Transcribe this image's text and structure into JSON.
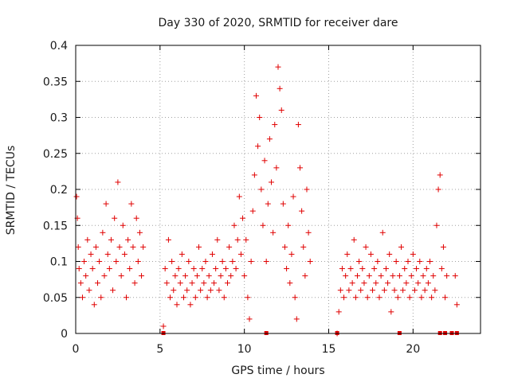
{
  "chart_data": {
    "type": "scatter",
    "title": "Day 330 of 2020, SRMTID for receiver dare",
    "xlabel": "GPS time / hours",
    "ylabel": "SRMTID / TECUs",
    "xlim": [
      0,
      24
    ],
    "ylim": [
      0,
      0.4
    ],
    "x_ticks": [
      0,
      5,
      10,
      15,
      20
    ],
    "x_tick_labels": [
      "0",
      "5",
      "10",
      "15",
      "20"
    ],
    "y_ticks": [
      0,
      0.05,
      0.1,
      0.15,
      0.2,
      0.25,
      0.3,
      0.35,
      0.4
    ],
    "y_tick_labels": [
      "0",
      "0.05",
      "0.1",
      "0.15",
      "0.2",
      "0.25",
      "0.3",
      "0.35",
      "0.4"
    ],
    "grid": true,
    "marker": "+",
    "color": "#e00000",
    "series": [
      {
        "name": "SRMTID",
        "points": [
          [
            0.05,
            0.19
          ],
          [
            0.1,
            0.16
          ],
          [
            0.15,
            0.12
          ],
          [
            0.2,
            0.09
          ],
          [
            0.3,
            0.07
          ],
          [
            0.4,
            0.05
          ],
          [
            0.5,
            0.1
          ],
          [
            0.6,
            0.08
          ],
          [
            0.7,
            0.13
          ],
          [
            0.8,
            0.06
          ],
          [
            0.9,
            0.11
          ],
          [
            1.0,
            0.09
          ],
          [
            1.1,
            0.04
          ],
          [
            1.2,
            0.12
          ],
          [
            1.3,
            0.07
          ],
          [
            1.4,
            0.1
          ],
          [
            1.5,
            0.05
          ],
          [
            1.6,
            0.14
          ],
          [
            1.7,
            0.08
          ],
          [
            1.8,
            0.18
          ],
          [
            1.9,
            0.11
          ],
          [
            2.0,
            0.09
          ],
          [
            2.1,
            0.13
          ],
          [
            2.2,
            0.06
          ],
          [
            2.3,
            0.16
          ],
          [
            2.4,
            0.1
          ],
          [
            2.5,
            0.21
          ],
          [
            2.6,
            0.12
          ],
          [
            2.7,
            0.08
          ],
          [
            2.8,
            0.15
          ],
          [
            2.9,
            0.11
          ],
          [
            3.0,
            0.05
          ],
          [
            3.1,
            0.13
          ],
          [
            3.2,
            0.09
          ],
          [
            3.3,
            0.18
          ],
          [
            3.4,
            0.12
          ],
          [
            3.5,
            0.07
          ],
          [
            3.6,
            0.16
          ],
          [
            3.7,
            0.1
          ],
          [
            3.8,
            0.14
          ],
          [
            3.9,
            0.08
          ],
          [
            4.0,
            0.12
          ],
          [
            5.2,
            0.01
          ],
          [
            5.3,
            0.09
          ],
          [
            5.4,
            0.07
          ],
          [
            5.5,
            0.13
          ],
          [
            5.6,
            0.05
          ],
          [
            5.7,
            0.1
          ],
          [
            5.8,
            0.06
          ],
          [
            5.9,
            0.08
          ],
          [
            6.0,
            0.04
          ],
          [
            6.1,
            0.09
          ],
          [
            6.2,
            0.07
          ],
          [
            6.3,
            0.11
          ],
          [
            6.4,
            0.05
          ],
          [
            6.5,
            0.08
          ],
          [
            6.6,
            0.06
          ],
          [
            6.7,
            0.1
          ],
          [
            6.8,
            0.04
          ],
          [
            6.9,
            0.07
          ],
          [
            7.0,
            0.09
          ],
          [
            7.1,
            0.05
          ],
          [
            7.2,
            0.08
          ],
          [
            7.3,
            0.12
          ],
          [
            7.4,
            0.06
          ],
          [
            7.5,
            0.09
          ],
          [
            7.6,
            0.07
          ],
          [
            7.7,
            0.1
          ],
          [
            7.8,
            0.05
          ],
          [
            7.9,
            0.08
          ],
          [
            8.0,
            0.06
          ],
          [
            8.1,
            0.11
          ],
          [
            8.2,
            0.07
          ],
          [
            8.3,
            0.09
          ],
          [
            8.4,
            0.13
          ],
          [
            8.5,
            0.06
          ],
          [
            8.6,
            0.08
          ],
          [
            8.7,
            0.1
          ],
          [
            8.8,
            0.05
          ],
          [
            8.9,
            0.09
          ],
          [
            9.0,
            0.07
          ],
          [
            9.1,
            0.12
          ],
          [
            9.2,
            0.08
          ],
          [
            9.3,
            0.1
          ],
          [
            9.4,
            0.15
          ],
          [
            9.5,
            0.09
          ],
          [
            9.6,
            0.13
          ],
          [
            9.7,
            0.19
          ],
          [
            9.8,
            0.11
          ],
          [
            9.9,
            0.16
          ],
          [
            10.0,
            0.08
          ],
          [
            10.1,
            0.13
          ],
          [
            10.2,
            0.05
          ],
          [
            10.3,
            0.02
          ],
          [
            10.4,
            0.1
          ],
          [
            10.5,
            0.17
          ],
          [
            10.6,
            0.22
          ],
          [
            10.7,
            0.33
          ],
          [
            10.8,
            0.26
          ],
          [
            10.9,
            0.3
          ],
          [
            11.0,
            0.2
          ],
          [
            11.1,
            0.15
          ],
          [
            11.2,
            0.24
          ],
          [
            11.3,
            0.1
          ],
          [
            11.4,
            0.18
          ],
          [
            11.5,
            0.27
          ],
          [
            11.6,
            0.21
          ],
          [
            11.7,
            0.14
          ],
          [
            11.8,
            0.29
          ],
          [
            11.9,
            0.23
          ],
          [
            12.0,
            0.37
          ],
          [
            12.1,
            0.34
          ],
          [
            12.2,
            0.31
          ],
          [
            12.3,
            0.18
          ],
          [
            12.4,
            0.12
          ],
          [
            12.5,
            0.09
          ],
          [
            12.6,
            0.15
          ],
          [
            12.7,
            0.07
          ],
          [
            12.8,
            0.11
          ],
          [
            12.9,
            0.19
          ],
          [
            13.0,
            0.05
          ],
          [
            13.1,
            0.02
          ],
          [
            13.2,
            0.29
          ],
          [
            13.3,
            0.23
          ],
          [
            13.4,
            0.17
          ],
          [
            13.5,
            0.12
          ],
          [
            13.6,
            0.08
          ],
          [
            13.7,
            0.2
          ],
          [
            13.8,
            0.14
          ],
          [
            13.9,
            0.1
          ],
          [
            15.5,
            0.0
          ],
          [
            15.6,
            0.03
          ],
          [
            15.7,
            0.06
          ],
          [
            15.8,
            0.09
          ],
          [
            15.9,
            0.05
          ],
          [
            16.0,
            0.08
          ],
          [
            16.1,
            0.11
          ],
          [
            16.2,
            0.06
          ],
          [
            16.3,
            0.09
          ],
          [
            16.4,
            0.07
          ],
          [
            16.5,
            0.13
          ],
          [
            16.6,
            0.05
          ],
          [
            16.7,
            0.08
          ],
          [
            16.8,
            0.1
          ],
          [
            16.9,
            0.06
          ],
          [
            17.0,
            0.09
          ],
          [
            17.1,
            0.07
          ],
          [
            17.2,
            0.12
          ],
          [
            17.3,
            0.05
          ],
          [
            17.4,
            0.08
          ],
          [
            17.5,
            0.11
          ],
          [
            17.6,
            0.06
          ],
          [
            17.7,
            0.09
          ],
          [
            17.8,
            0.07
          ],
          [
            17.9,
            0.1
          ],
          [
            18.0,
            0.05
          ],
          [
            18.1,
            0.08
          ],
          [
            18.2,
            0.14
          ],
          [
            18.3,
            0.06
          ],
          [
            18.4,
            0.09
          ],
          [
            18.5,
            0.07
          ],
          [
            18.6,
            0.11
          ],
          [
            18.7,
            0.03
          ],
          [
            18.8,
            0.08
          ],
          [
            18.9,
            0.06
          ],
          [
            19.0,
            0.1
          ],
          [
            19.1,
            0.05
          ],
          [
            19.2,
            0.08
          ],
          [
            19.3,
            0.12
          ],
          [
            19.4,
            0.06
          ],
          [
            19.5,
            0.09
          ],
          [
            19.6,
            0.07
          ],
          [
            19.7,
            0.1
          ],
          [
            19.8,
            0.05
          ],
          [
            19.9,
            0.08
          ],
          [
            20.0,
            0.11
          ],
          [
            20.1,
            0.06
          ],
          [
            20.2,
            0.09
          ],
          [
            20.3,
            0.07
          ],
          [
            20.4,
            0.1
          ],
          [
            20.5,
            0.05
          ],
          [
            20.6,
            0.08
          ],
          [
            20.7,
            0.06
          ],
          [
            20.8,
            0.09
          ],
          [
            20.9,
            0.07
          ],
          [
            21.0,
            0.1
          ],
          [
            21.1,
            0.05
          ],
          [
            21.2,
            0.08
          ],
          [
            21.3,
            0.06
          ],
          [
            21.4,
            0.15
          ],
          [
            21.5,
            0.2
          ],
          [
            21.6,
            0.22
          ],
          [
            21.7,
            0.09
          ],
          [
            21.8,
            0.12
          ],
          [
            21.9,
            0.05
          ],
          [
            22.0,
            0.08
          ],
          [
            22.5,
            0.08
          ],
          [
            22.6,
            0.04
          ]
        ]
      }
    ],
    "zero_markers_x": [
      5.2,
      11.3,
      15.5,
      19.2,
      21.6,
      21.9,
      22.3,
      22.6
    ]
  }
}
